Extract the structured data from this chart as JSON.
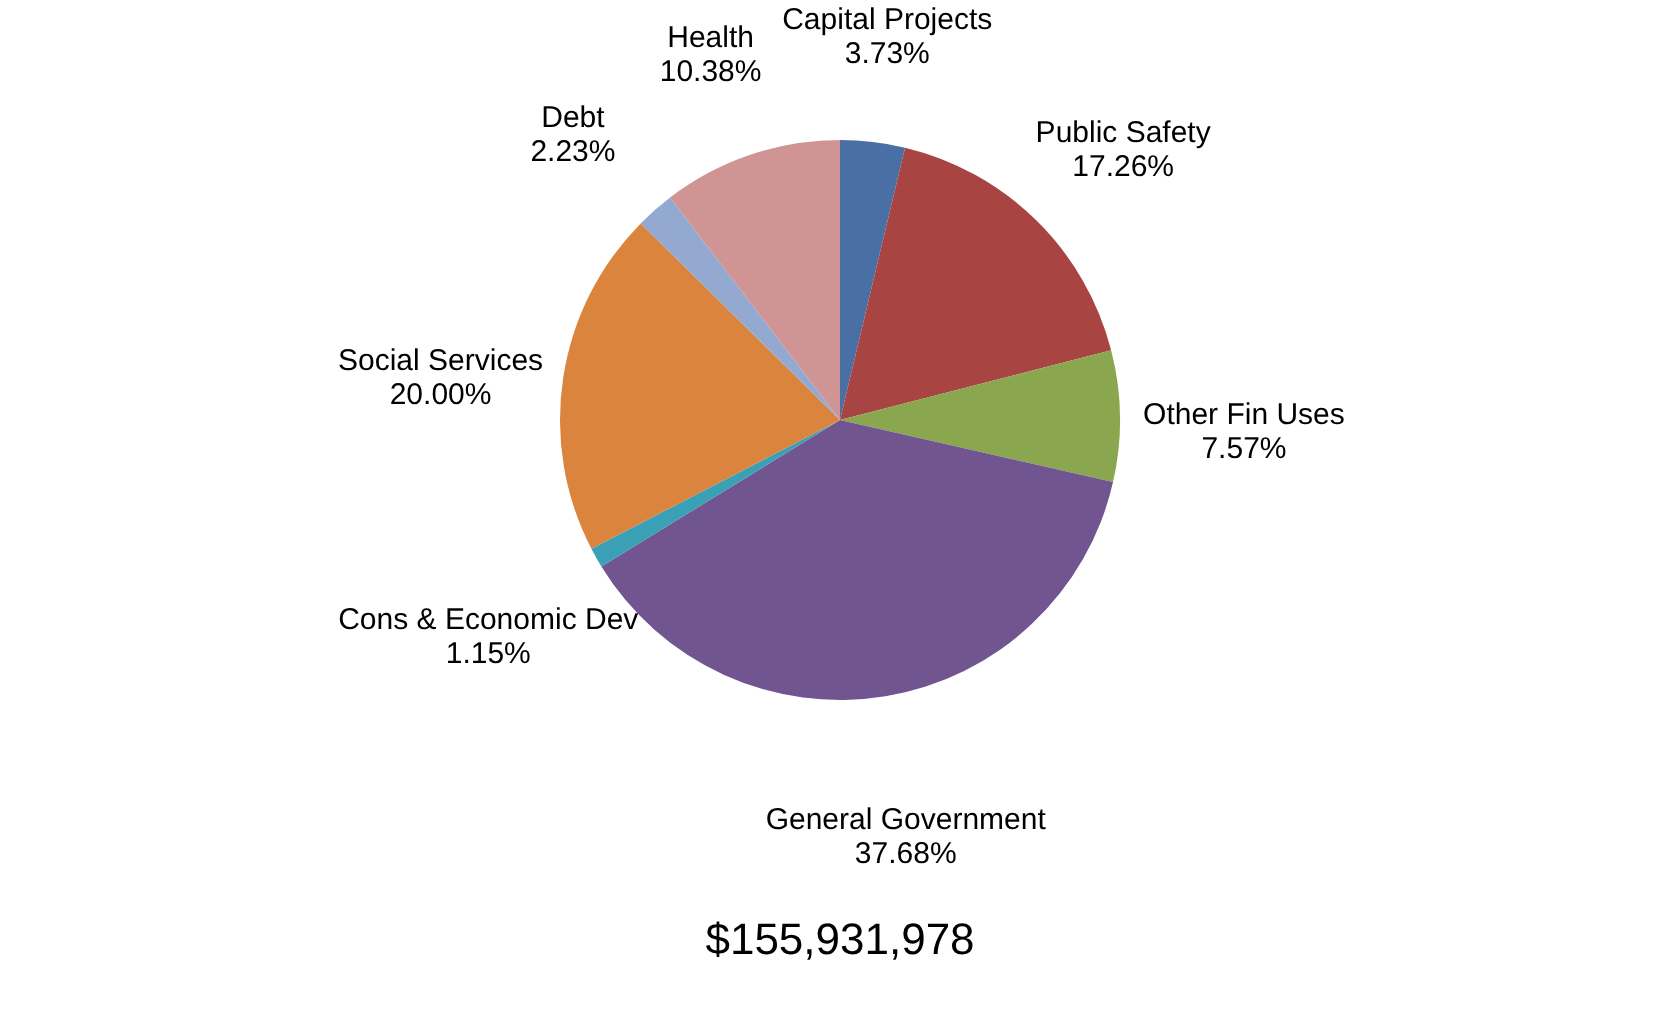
{
  "chart_data": {
    "type": "pie",
    "categories": [
      "Capital Projects",
      "Public Safety",
      "Other Fin Uses",
      "General Government",
      "Cons & Economic Dev",
      "Social Services",
      "Debt",
      "Health"
    ],
    "values": [
      3.73,
      17.26,
      7.57,
      37.68,
      1.15,
      20.0,
      2.23,
      10.38
    ],
    "colors": [
      "#4a6fa5",
      "#a84442",
      "#8aa64e",
      "#715590",
      "#3aa0b5",
      "#db843d",
      "#93a9d0",
      "#d09494"
    ],
    "value_labels": [
      "3.73%",
      "17.26%",
      "7.57%",
      "37.68%",
      "1.15%",
      "20.00%",
      "2.23%",
      "10.38%"
    ],
    "annotations": [
      "$155,931,978"
    ]
  }
}
